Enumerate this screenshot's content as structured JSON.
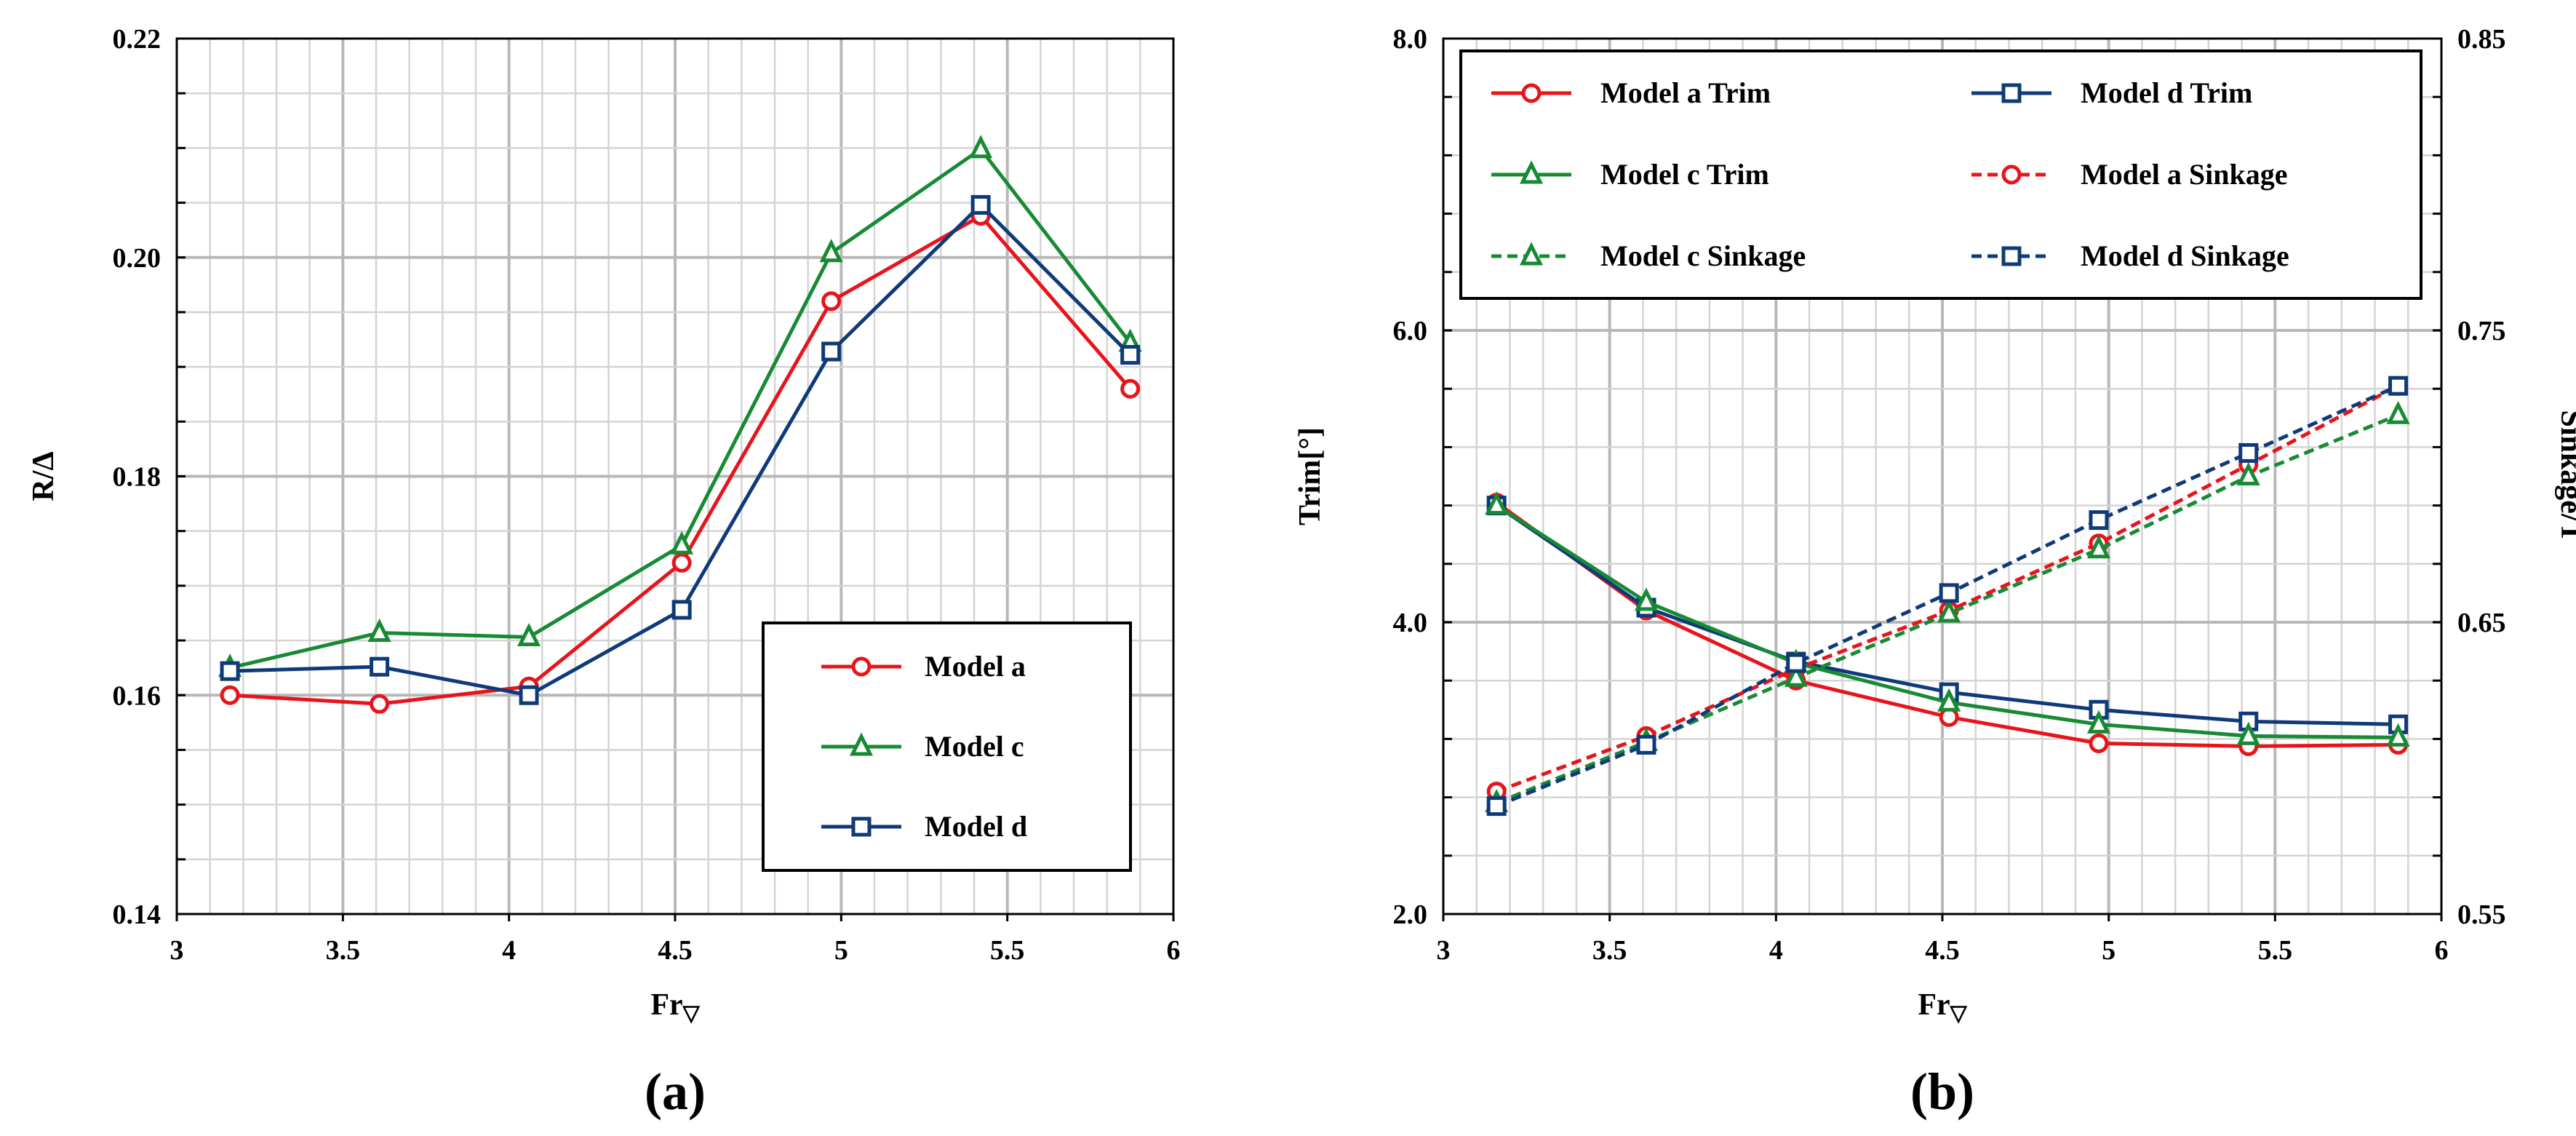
{
  "chart_data": [
    {
      "type": "line",
      "panel_label": "(a)",
      "xlabel": "Fr",
      "xlabel_sub": "▽",
      "ylabel": "R/Δ",
      "xlim": [
        3,
        6
      ],
      "ylim": [
        0.14,
        0.22
      ],
      "x_ticks": [
        "3",
        "3.5",
        "4",
        "4.5",
        "5",
        "5.5",
        "6"
      ],
      "y_ticks": [
        "0.14",
        "0.16",
        "0.18",
        "0.20",
        "0.22"
      ],
      "grid": true,
      "legend_position": "bottom-right",
      "x": [
        3.16,
        3.61,
        4.06,
        4.52,
        4.97,
        5.42,
        5.87
      ],
      "series": [
        {
          "name": "Model a",
          "values": [
            0.16,
            0.1592,
            0.1608,
            0.1721,
            0.196,
            0.2038,
            0.188
          ],
          "color": "#e8141b",
          "marker": "circle",
          "dash": "solid"
        },
        {
          "name": "Model c",
          "values": [
            0.1625,
            0.1657,
            0.1653,
            0.1737,
            0.2004,
            0.2099,
            0.1922
          ],
          "color": "#178a33",
          "marker": "triangle",
          "dash": "solid"
        },
        {
          "name": "Model d",
          "values": [
            0.1622,
            0.1626,
            0.16,
            0.1678,
            0.1914,
            0.2048,
            0.1911
          ],
          "color": "#0f3a78",
          "marker": "square",
          "dash": "solid"
        }
      ]
    },
    {
      "type": "line",
      "panel_label": "(b)",
      "xlabel": "Fr",
      "xlabel_sub": "▽",
      "ylabel": "Trim[°]",
      "y2label": "Sinkage/T",
      "xlim": [
        3,
        6
      ],
      "ylim": [
        2.0,
        8.0
      ],
      "y2lim": [
        0.55,
        0.85
      ],
      "x_ticks": [
        "3",
        "3.5",
        "4",
        "4.5",
        "5",
        "5.5",
        "6"
      ],
      "y_ticks": [
        "2.0",
        "4.0",
        "6.0",
        "8.0"
      ],
      "y2_ticks": [
        "0.55",
        "0.65",
        "0.75",
        "0.85"
      ],
      "grid": true,
      "legend_position": "top",
      "x": [
        3.16,
        3.61,
        4.06,
        4.52,
        4.97,
        5.42,
        5.87
      ],
      "series": [
        {
          "name": "Model a Trim",
          "axis": "left",
          "values": [
            4.82,
            4.08,
            3.6,
            3.35,
            3.17,
            3.15,
            3.16
          ],
          "color": "#e8141b",
          "marker": "circle",
          "dash": "solid"
        },
        {
          "name": "Model d Trim",
          "axis": "left",
          "values": [
            4.8,
            4.1,
            3.73,
            3.52,
            3.4,
            3.32,
            3.3
          ],
          "color": "#0f3a78",
          "marker": "square",
          "dash": "solid"
        },
        {
          "name": "Model c Trim",
          "axis": "left",
          "values": [
            4.8,
            4.14,
            3.72,
            3.45,
            3.3,
            3.22,
            3.21
          ],
          "color": "#178a33",
          "marker": "triangle",
          "dash": "solid"
        },
        {
          "name": "Model a Sinkage",
          "axis": "right",
          "values": [
            0.592,
            0.611,
            0.634,
            0.654,
            0.677,
            0.704,
            0.731
          ],
          "color": "#e8141b",
          "marker": "circle",
          "dash": "dashed"
        },
        {
          "name": "Model c Sinkage",
          "axis": "right",
          "values": [
            0.588,
            0.609,
            0.631,
            0.653,
            0.675,
            0.7,
            0.721
          ],
          "color": "#178a33",
          "marker": "triangle",
          "dash": "dashed"
        },
        {
          "name": "Model d Sinkage",
          "axis": "right",
          "values": [
            0.587,
            0.608,
            0.636,
            0.66,
            0.685,
            0.708,
            0.731
          ],
          "color": "#0f3a78",
          "marker": "square",
          "dash": "dashed"
        }
      ]
    }
  ]
}
